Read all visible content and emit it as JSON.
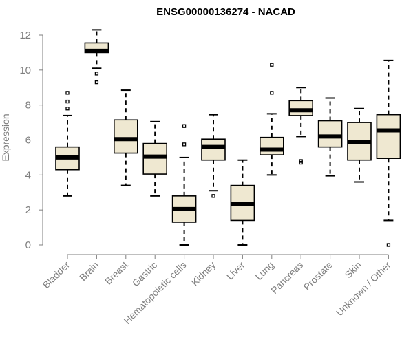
{
  "chart_data": {
    "type": "box",
    "title": "ENSG00000136274 - NACAD",
    "xlabel": "",
    "ylabel": "Expression",
    "ylim": [
      0,
      12
    ],
    "yticks": [
      0,
      2,
      4,
      6,
      8,
      10,
      12
    ],
    "grid": false,
    "categories": [
      "Bladder",
      "Brain",
      "Breast",
      "Gastric",
      "Hematopoietic cells",
      "Kidney",
      "Liver",
      "Lung",
      "Pancreas",
      "Prostate",
      "Skin",
      "Unknown / Other"
    ],
    "boxes": [
      {
        "name": "Bladder",
        "whisker_low": 2.8,
        "q1": 4.3,
        "median": 5.0,
        "q3": 5.6,
        "whisker_high": 7.4,
        "outliers": [
          7.8,
          8.2,
          8.7
        ]
      },
      {
        "name": "Brain",
        "whisker_low": 10.1,
        "q1": 11.0,
        "median": 11.1,
        "q3": 11.55,
        "whisker_high": 12.3,
        "outliers": [
          9.3,
          9.8
        ]
      },
      {
        "name": "Breast",
        "whisker_low": 3.4,
        "q1": 5.25,
        "median": 6.05,
        "q3": 7.15,
        "whisker_high": 8.85,
        "outliers": []
      },
      {
        "name": "Gastric",
        "whisker_low": 2.8,
        "q1": 4.05,
        "median": 5.05,
        "q3": 5.8,
        "whisker_high": 7.05,
        "outliers": []
      },
      {
        "name": "Hematopoietic cells",
        "whisker_low": 0.0,
        "q1": 1.3,
        "median": 2.05,
        "q3": 2.8,
        "whisker_high": 5.0,
        "outliers": [
          5.75,
          6.8
        ]
      },
      {
        "name": "Kidney",
        "whisker_low": 3.1,
        "q1": 4.85,
        "median": 5.6,
        "q3": 6.05,
        "whisker_high": 7.45,
        "outliers": [
          2.8
        ]
      },
      {
        "name": "Liver",
        "whisker_low": 0.0,
        "q1": 1.4,
        "median": 2.35,
        "q3": 3.4,
        "whisker_high": 4.85,
        "outliers": []
      },
      {
        "name": "Lung",
        "whisker_low": 4.0,
        "q1": 5.15,
        "median": 5.45,
        "q3": 6.15,
        "whisker_high": 7.5,
        "outliers": [
          8.7,
          10.3
        ]
      },
      {
        "name": "Pancreas",
        "whisker_low": 6.2,
        "q1": 7.4,
        "median": 7.7,
        "q3": 8.25,
        "whisker_high": 9.0,
        "outliers": [
          4.7,
          4.8
        ]
      },
      {
        "name": "Prostate",
        "whisker_low": 3.95,
        "q1": 5.6,
        "median": 6.2,
        "q3": 7.1,
        "whisker_high": 8.4,
        "outliers": []
      },
      {
        "name": "Skin",
        "whisker_low": 3.6,
        "q1": 4.85,
        "median": 5.9,
        "q3": 7.0,
        "whisker_high": 7.8,
        "outliers": []
      },
      {
        "name": "Unknown / Other",
        "whisker_low": 1.4,
        "q1": 4.95,
        "median": 6.55,
        "q3": 7.45,
        "whisker_high": 10.55,
        "outliers": [
          0.0
        ]
      }
    ],
    "colors": {
      "box_fill": "#efe8d1",
      "stroke": "#000000",
      "axis": "#7f7f7f"
    }
  }
}
